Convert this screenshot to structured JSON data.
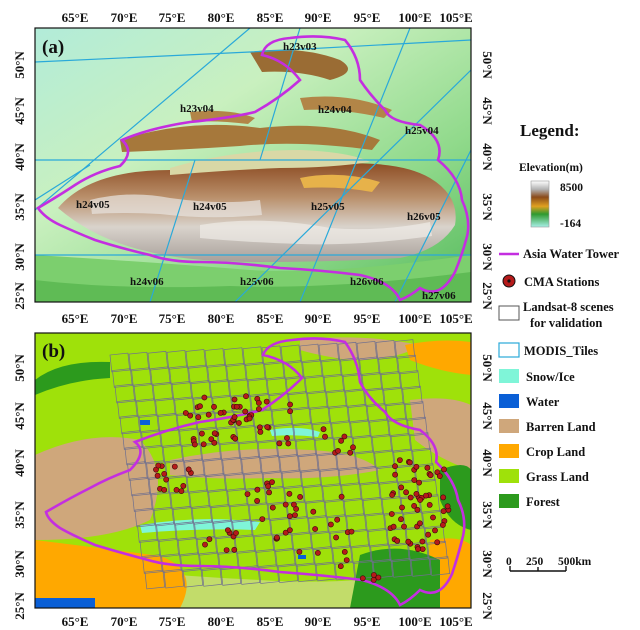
{
  "panels": {
    "a": {
      "label": "(a)",
      "lon_ticks": [
        "65°E",
        "70°E",
        "75°E",
        "80°E",
        "85°E",
        "90°E",
        "95°E",
        "100°E",
        "105°E"
      ],
      "lat_ticks": [
        "50°N",
        "45°N",
        "40°N",
        "35°N",
        "30°N",
        "25°N"
      ],
      "tiles": [
        "h23v03",
        "h23v04",
        "h24v04",
        "h25v04",
        "h24v05",
        "h25v05",
        "h26v05",
        "h24v06",
        "h25v06",
        "h26v06",
        "h27v06",
        "h24v05"
      ]
    },
    "b": {
      "label": "(b)",
      "lon_ticks": [
        "65°E",
        "70°E",
        "75°E",
        "80°E",
        "85°E",
        "90°E",
        "95°E",
        "100°E",
        "105°E"
      ],
      "lat_ticks": [
        "50°N",
        "45°N",
        "40°N",
        "35°N",
        "30°N",
        "25°N"
      ]
    }
  },
  "legend": {
    "title": "Legend:",
    "elevation_title": "Elevation(m)",
    "elevation_max": "8500",
    "elevation_min": "-164",
    "water_tower": "Asia Water Tower",
    "cma": "CMA Stations",
    "landsat_line1": "Landsat-8 scenes",
    "landsat_line2": "for validation",
    "modis": "MODIS_Tiles",
    "classes": [
      {
        "label": "Snow/Ice",
        "color": "#7ff5d8"
      },
      {
        "label": "Water",
        "color": "#0a5fd6"
      },
      {
        "label": "Barren Land",
        "color": "#cfa77b"
      },
      {
        "label": "Crop Land",
        "color": "#ffa800"
      },
      {
        "label": "Grass Land",
        "color": "#9fe10a"
      },
      {
        "label": "Forest",
        "color": "#2c9a1d"
      }
    ],
    "scale": {
      "v0": "0",
      "v1": "250",
      "v2": "500km"
    }
  },
  "colors": {
    "tower_outline": "#c42ee0",
    "modis_line": "#2aa9d9",
    "station": "#b51a1a"
  }
}
